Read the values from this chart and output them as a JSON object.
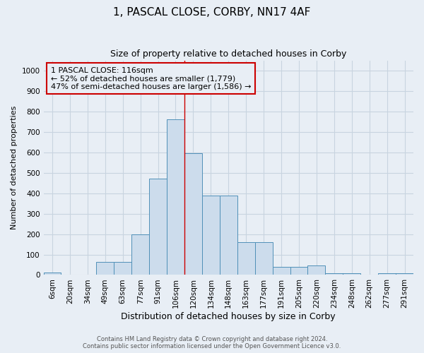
{
  "title": "1, PASCAL CLOSE, CORBY, NN17 4AF",
  "subtitle": "Size of property relative to detached houses in Corby",
  "xlabel": "Distribution of detached houses by size in Corby",
  "ylabel": "Number of detached properties",
  "categories": [
    "6sqm",
    "20sqm",
    "34sqm",
    "49sqm",
    "63sqm",
    "77sqm",
    "91sqm",
    "106sqm",
    "120sqm",
    "134sqm",
    "148sqm",
    "163sqm",
    "177sqm",
    "191sqm",
    "205sqm",
    "220sqm",
    "234sqm",
    "248sqm",
    "262sqm",
    "277sqm",
    "291sqm"
  ],
  "values": [
    12,
    0,
    0,
    65,
    65,
    200,
    470,
    760,
    595,
    390,
    390,
    160,
    160,
    40,
    40,
    45,
    10,
    10,
    0,
    10,
    10
  ],
  "bar_color": "#ccdcec",
  "bar_edge_color": "#5090b8",
  "grid_color": "#c8d4e0",
  "bg_color": "#e8eef5",
  "vline_color": "#cc0000",
  "vline_x": 7.5,
  "annotation_text": "1 PASCAL CLOSE: 116sqm\n← 52% of detached houses are smaller (1,779)\n47% of semi-detached houses are larger (1,586) →",
  "annotation_box_color": "#cc0000",
  "footer_line1": "Contains HM Land Registry data © Crown copyright and database right 2024.",
  "footer_line2": "Contains public sector information licensed under the Open Government Licence v3.0.",
  "ylim": [
    0,
    1050
  ],
  "yticks": [
    0,
    100,
    200,
    300,
    400,
    500,
    600,
    700,
    800,
    900,
    1000
  ],
  "title_fontsize": 11,
  "subtitle_fontsize": 9,
  "tick_fontsize": 7.5,
  "ylabel_fontsize": 8,
  "xlabel_fontsize": 9
}
